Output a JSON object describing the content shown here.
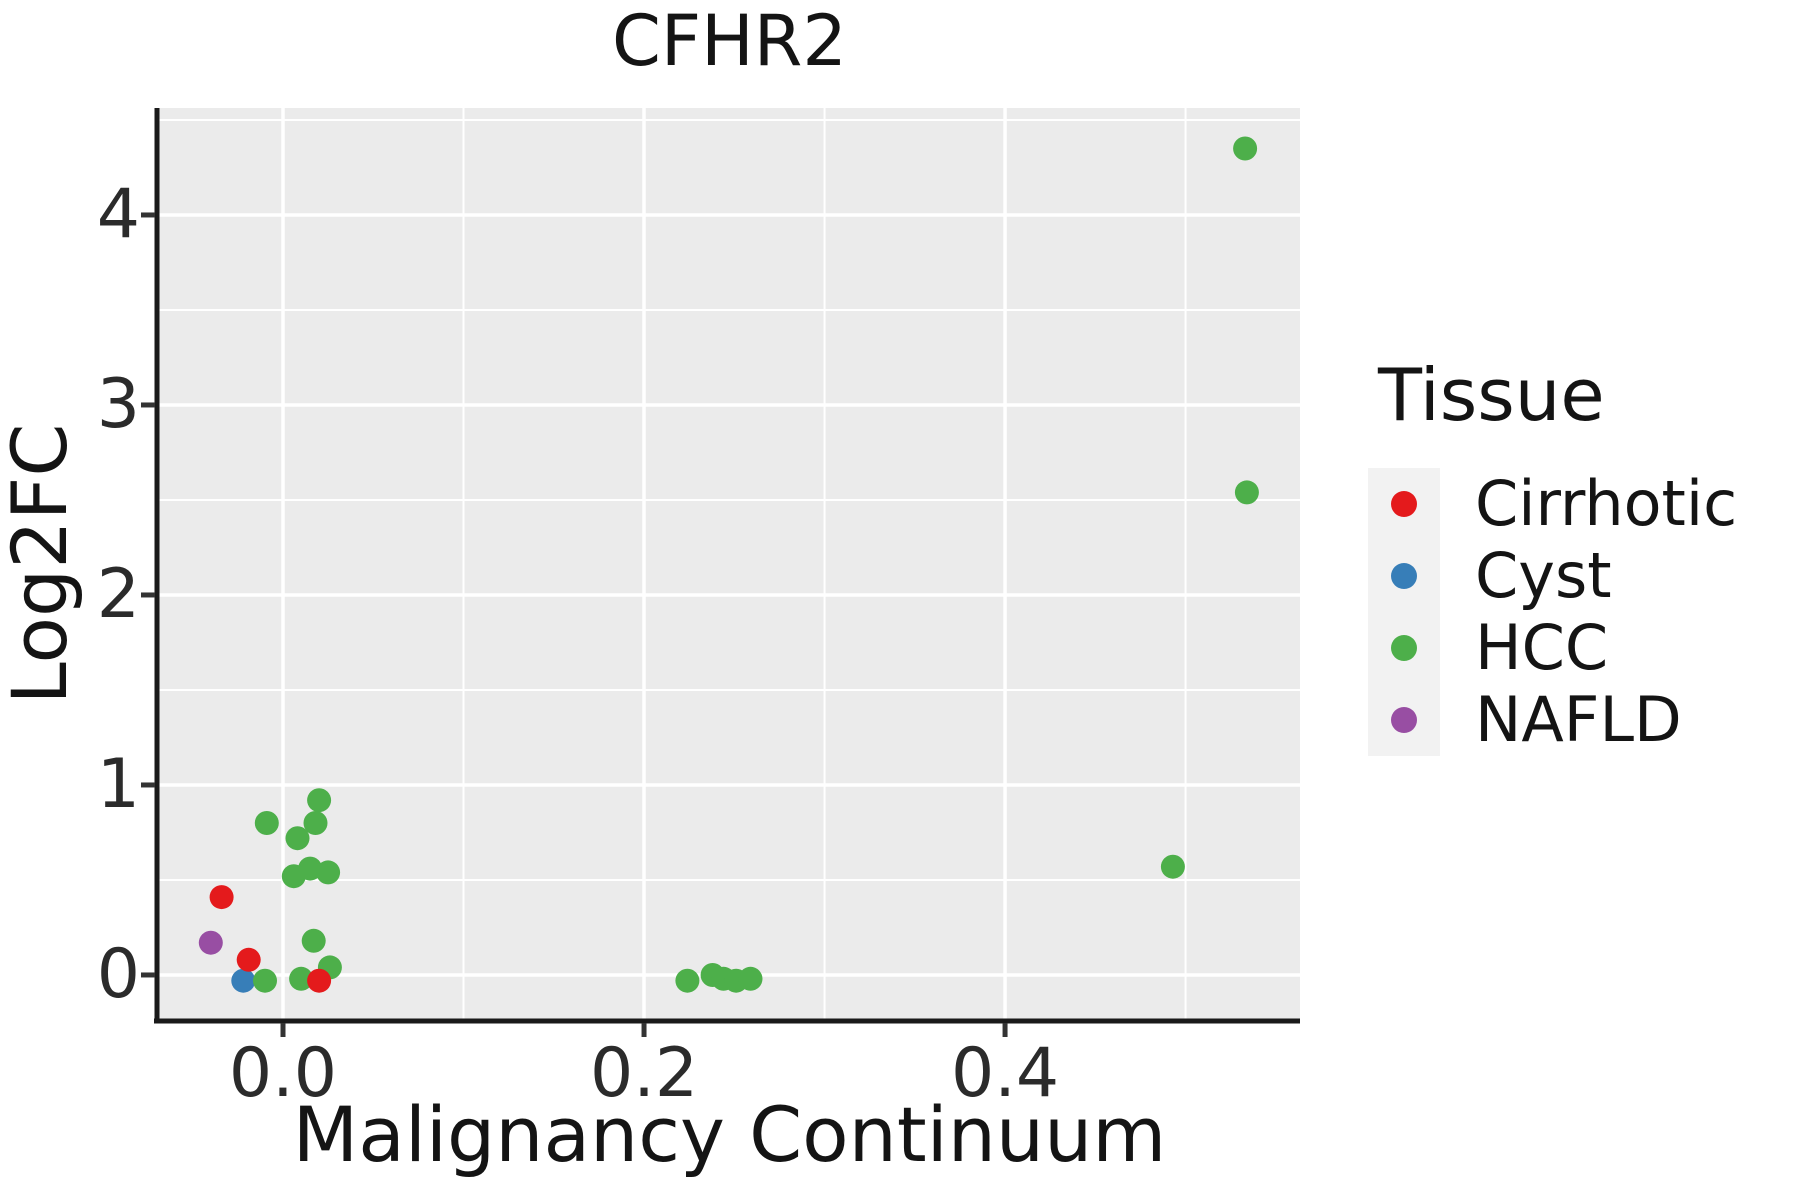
{
  "title": "CFHR2",
  "chart_data": {
    "type": "scatter",
    "title": "CFHR2",
    "xlabel": "Malignancy Continuum",
    "ylabel": "Log2FC",
    "xlim": [
      -0.0687,
      0.5634
    ],
    "ylim": [
      -0.237,
      4.563
    ],
    "grid": "white major and minor gridlines on gray panel",
    "legend_position": "right",
    "panel_background": "#EBEBEB",
    "axis_line_color": "#1a1a1a",
    "tick_color": "#333333",
    "point_radius_px": 12,
    "x_ticks": [
      {
        "value": 0.0,
        "label": "0.0"
      },
      {
        "value": 0.2,
        "label": "0.2"
      },
      {
        "value": 0.4,
        "label": "0.4"
      }
    ],
    "y_ticks": [
      {
        "value": 0,
        "label": "0"
      },
      {
        "value": 1,
        "label": "1"
      },
      {
        "value": 2,
        "label": "2"
      },
      {
        "value": 3,
        "label": "3"
      },
      {
        "value": 4,
        "label": "4"
      }
    ],
    "x_minor_gridlines": [
      0.1,
      0.3,
      0.5
    ],
    "y_minor_gridlines": [
      0.5,
      1.5,
      2.5,
      3.5,
      4.5
    ],
    "series": [
      {
        "name": "Cyst",
        "color": "#377EB8",
        "points": [
          [
            -0.022,
            -0.03
          ]
        ]
      },
      {
        "name": "HCC",
        "color": "#4DAF4A",
        "points": [
          [
            0.533,
            4.35
          ],
          [
            0.534,
            2.54
          ],
          [
            0.493,
            0.57
          ],
          [
            -0.009,
            0.8
          ],
          [
            0.02,
            0.92
          ],
          [
            0.018,
            0.8
          ],
          [
            0.008,
            0.72
          ],
          [
            0.006,
            0.52
          ],
          [
            0.015,
            0.56
          ],
          [
            0.025,
            0.54
          ],
          [
            0.017,
            0.18
          ],
          [
            0.026,
            0.04
          ],
          [
            -0.01,
            -0.03
          ],
          [
            0.01,
            -0.02
          ],
          [
            0.224,
            -0.03
          ],
          [
            0.238,
            0.0
          ],
          [
            0.244,
            -0.02
          ],
          [
            0.251,
            -0.03
          ],
          [
            0.259,
            -0.02
          ]
        ]
      },
      {
        "name": "Cirrhotic",
        "color": "#E41A1C",
        "points": [
          [
            -0.034,
            0.41
          ],
          [
            -0.019,
            0.08
          ],
          [
            0.02,
            -0.03
          ]
        ]
      },
      {
        "name": "NAFLD",
        "color": "#984EA3",
        "points": [
          [
            -0.04,
            0.17
          ]
        ]
      }
    ]
  },
  "legend": {
    "title": "Tissue",
    "items": [
      {
        "label": "Cirrhotic",
        "color": "#E41A1C"
      },
      {
        "label": "Cyst",
        "color": "#377EB8"
      },
      {
        "label": "HCC",
        "color": "#4DAF4A"
      },
      {
        "label": "NAFLD",
        "color": "#984EA3"
      }
    ]
  }
}
